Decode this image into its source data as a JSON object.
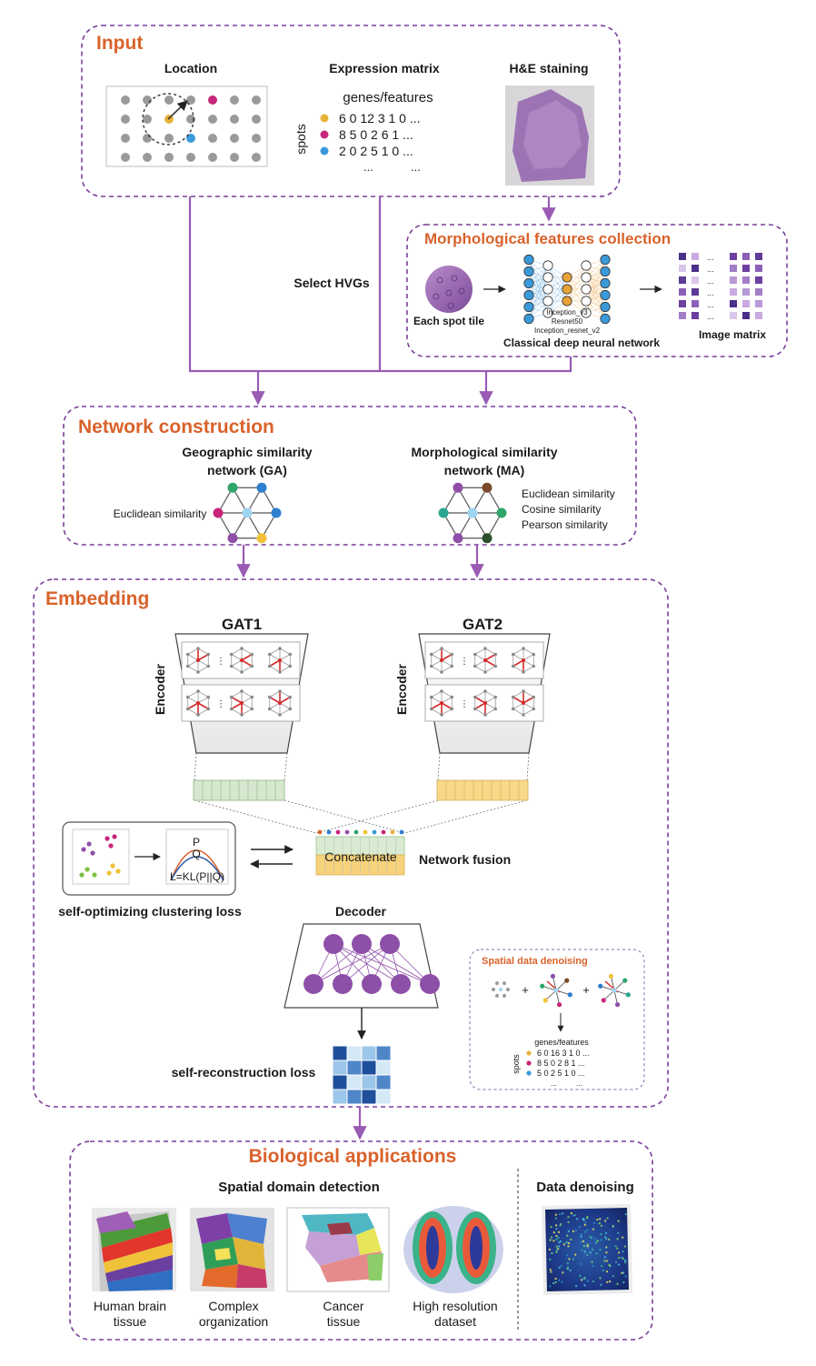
{
  "sections": {
    "input": "Input",
    "morph_collection": "Morphological features collection",
    "network": "Network construction",
    "embedding": "Embedding",
    "bio": "Biological applications",
    "denoise_panel": "Spatial data denoising"
  },
  "input": {
    "location": "Location",
    "expression_matrix": "Expression matrix",
    "he_staining": "H&E staining",
    "genes_features": "genes/features",
    "spots": "spots",
    "rows": [
      {
        "color": "#e8b23a",
        "values": "6  0  12  3  1  0 ..."
      },
      {
        "color": "#c8267a",
        "values": "8  5  0  2  6  1 ..."
      },
      {
        "color": "#3a9ad9",
        "values": "2  0  2  5  1  0 ..."
      }
    ],
    "ellipsis": "...",
    "select_hvgs": "Select HVGs"
  },
  "morph": {
    "each_spot_tile": "Each spot tile",
    "models": [
      "Inception_v3",
      "Resnet50",
      "Inception_resnet_v2"
    ],
    "classical_dnn": "Classical deep neural network",
    "image_matrix": "Image matrix"
  },
  "network": {
    "ga_title": [
      "Geographic similarity",
      "network (GA)"
    ],
    "ma_title": [
      "Morphological similarity",
      "network (MA)"
    ],
    "ga_metric": "Euclidean similarity",
    "ma_metrics": [
      "Euclidean similarity",
      "Cosine similarity",
      "Pearson similarity"
    ]
  },
  "embedding": {
    "gat1": "GAT1",
    "gat2": "GAT2",
    "encoder": "Encoder",
    "concatenate": "Concatenate",
    "network_fusion": "Network fusion",
    "p": "P",
    "q": "Q",
    "loss_formula": "L=KL(P||Q)",
    "clustering_loss": "self-optimizing clustering loss",
    "decoder": "Decoder",
    "recon_loss": "self-reconstruction loss",
    "denoise_genes": "genes/features",
    "denoise_spots": "spots",
    "denoise_rows": [
      {
        "color": "#e8b23a",
        "values": "6  0  16  3  1  0 ..."
      },
      {
        "color": "#c8267a",
        "values": "8  5  0  2  8  1 ..."
      },
      {
        "color": "#3a9ad9",
        "values": "5  0  2  5  1  0 ..."
      }
    ],
    "plus": "+"
  },
  "bio": {
    "spatial_domain": "Spatial domain detection",
    "data_denoising": "Data denoising",
    "examples": [
      [
        "Human brain",
        "tissue"
      ],
      [
        "Complex",
        "organization"
      ],
      [
        "Cancer",
        "tissue"
      ],
      [
        "High resolution",
        "dataset"
      ]
    ]
  },
  "colors": {
    "accent": "#d9622b",
    "border": "#7b3f98",
    "arrow": "#9a5bb5",
    "node_purple": "#8e4fa8"
  }
}
